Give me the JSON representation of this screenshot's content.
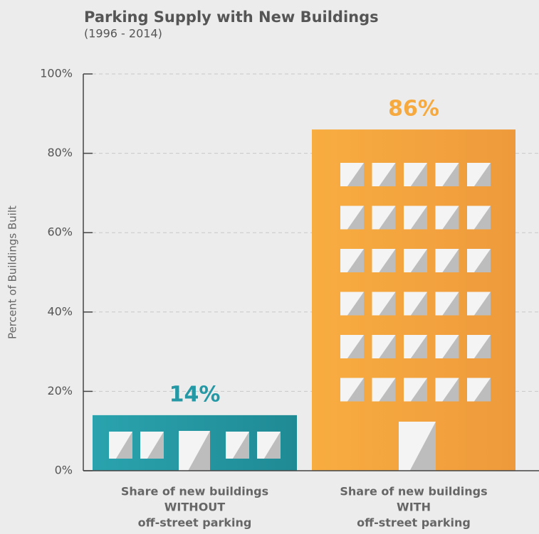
{
  "chart_data": {
    "type": "bar",
    "title": "Parking Supply with New Buildings",
    "subtitle": "(1996 - 2014)",
    "y_axis_label": "Percent of Buildings Built",
    "categories": [
      [
        "Share of new buildings",
        "WITHOUT",
        "off-street parking"
      ],
      [
        "Share of new buildings",
        "WITH",
        "off-street parking"
      ]
    ],
    "values": [
      14,
      86
    ],
    "value_labels": [
      "14%",
      "86%"
    ],
    "colors": [
      "#2499a5",
      "#f6a93f"
    ],
    "ylim": [
      0,
      100
    ],
    "yticks": [
      {
        "value": 0,
        "label": "0%"
      },
      {
        "value": 20,
        "label": "20%"
      },
      {
        "value": 40,
        "label": "40%"
      },
      {
        "value": 60,
        "label": "60%"
      },
      {
        "value": 80,
        "label": "80%"
      },
      {
        "value": 100,
        "label": "100%"
      }
    ],
    "grid": true
  }
}
